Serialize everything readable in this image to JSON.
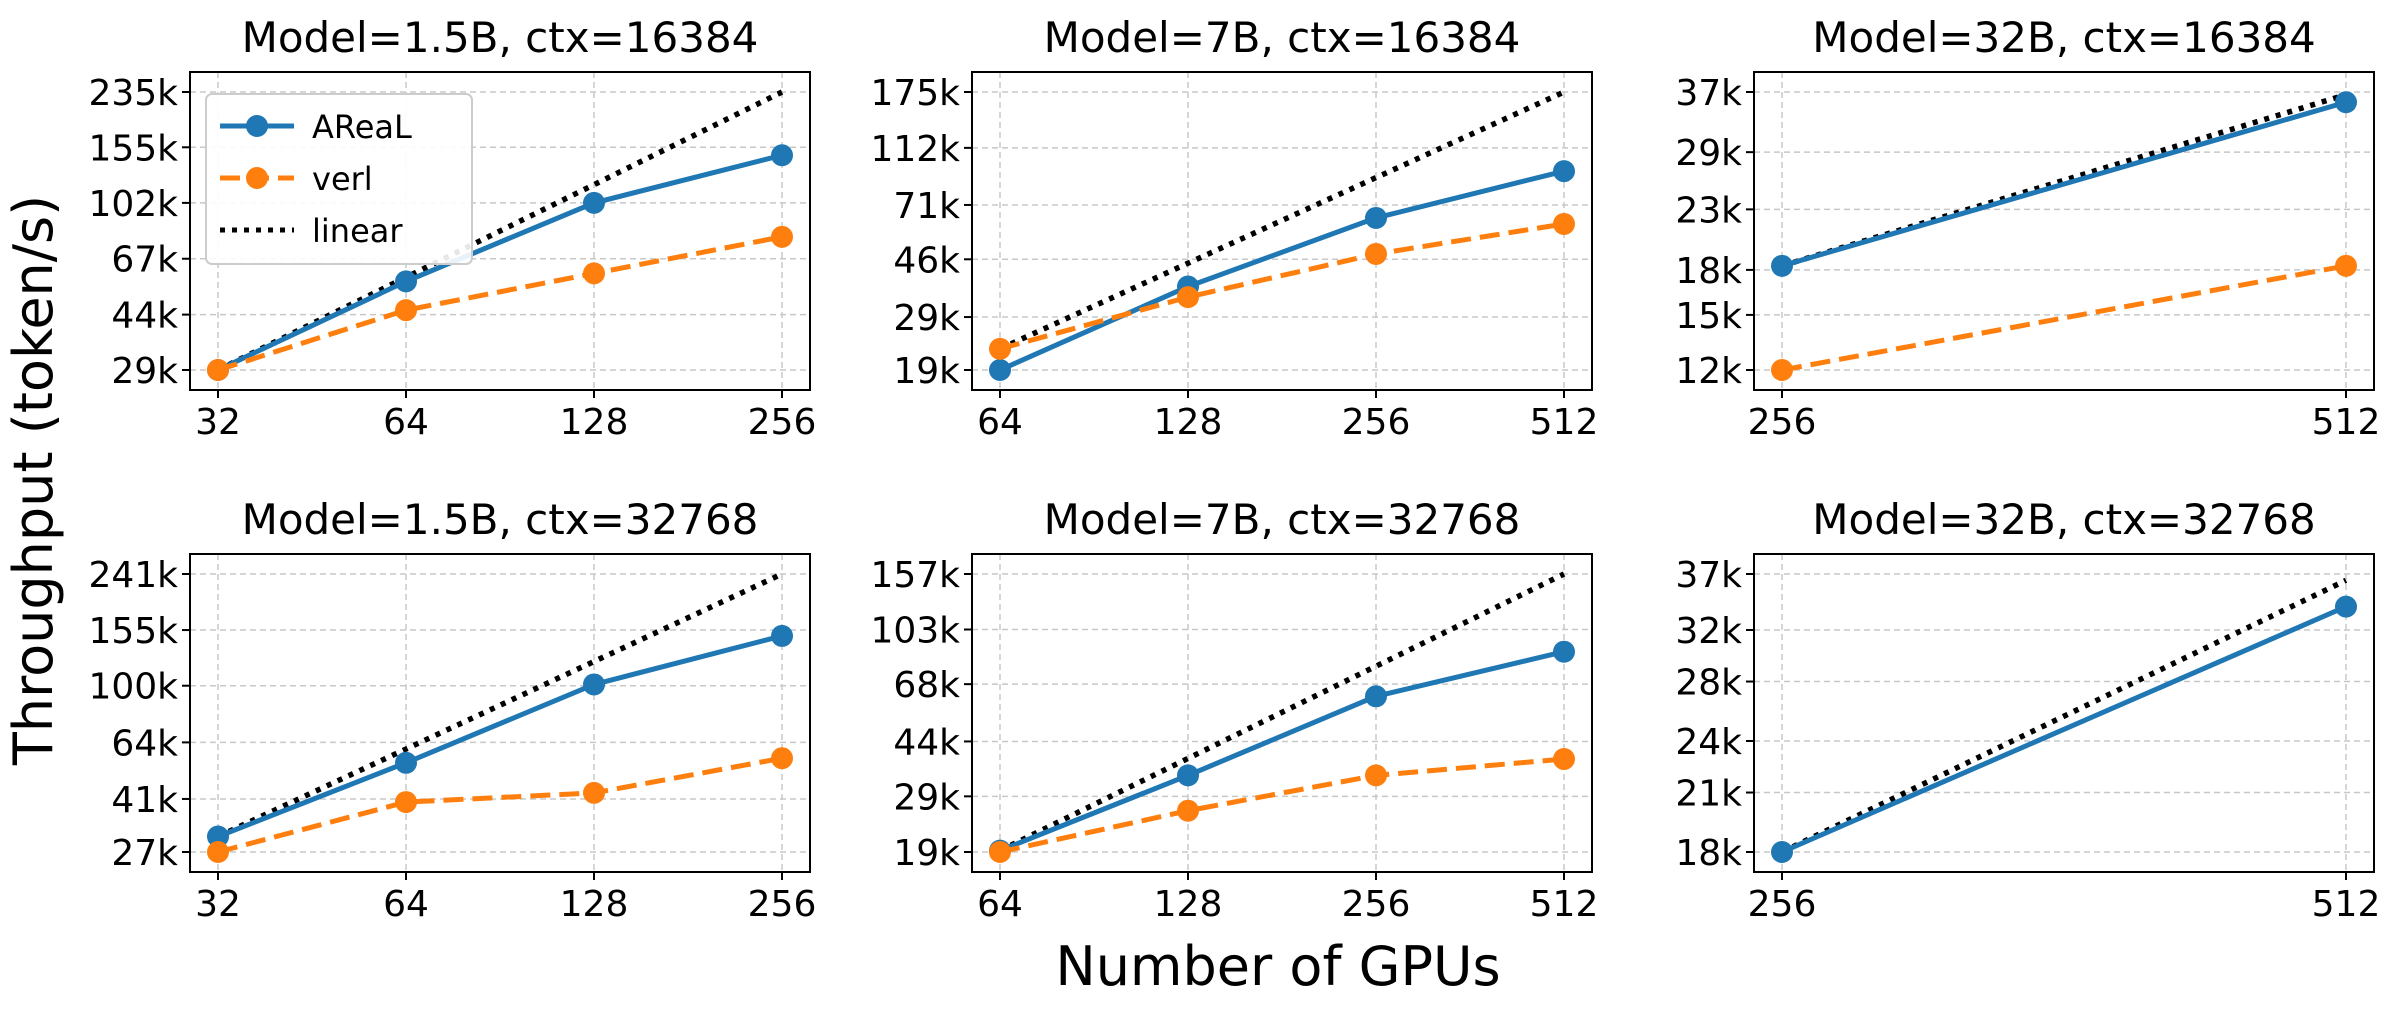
{
  "figure": {
    "ylabel": "Throughput (token/s)",
    "xlabel": "Number of GPUs"
  },
  "legend": {
    "location": "upper-left",
    "entries": [
      {
        "label": "AReaL",
        "color": "#1f77b4",
        "style": "solid",
        "marker": "circle"
      },
      {
        "label": "verl",
        "color": "#ff7f0e",
        "style": "dashed",
        "marker": "circle"
      },
      {
        "label": "linear",
        "color": "#000000",
        "style": "dotted",
        "marker": "none"
      }
    ]
  },
  "chart_data": [
    {
      "type": "line",
      "title": "Model=1.5B, ctx=16384",
      "xscale": "log2",
      "yscale": "log",
      "grid": true,
      "x": [
        32,
        64,
        128,
        256
      ],
      "xticks": [
        "32",
        "64",
        "128",
        "256"
      ],
      "yticks": [
        {
          "value": 29000,
          "label": "29k"
        },
        {
          "value": 44000,
          "label": "44k"
        },
        {
          "value": 67000,
          "label": "67k"
        },
        {
          "value": 102000,
          "label": "102k"
        },
        {
          "value": 155000,
          "label": "155k"
        },
        {
          "value": 235000,
          "label": "235k"
        }
      ],
      "series": [
        {
          "name": "AReaL",
          "color": "#1f77b4",
          "style": "solid",
          "marker": true,
          "x": [
            32,
            64,
            128,
            256
          ],
          "y": [
            29000,
            56500,
            102000,
            146000
          ]
        },
        {
          "name": "verl",
          "color": "#ff7f0e",
          "style": "dashed",
          "marker": true,
          "x": [
            32,
            64,
            128,
            256
          ],
          "y": [
            29000,
            45500,
            60000,
            79000
          ]
        },
        {
          "name": "linear",
          "color": "#000000",
          "style": "dotted",
          "marker": false,
          "x": [
            32,
            256
          ],
          "y": [
            29000,
            235000
          ]
        }
      ]
    },
    {
      "type": "line",
      "title": "Model=7B, ctx=16384",
      "xscale": "log2",
      "yscale": "log",
      "grid": true,
      "x": [
        64,
        128,
        256,
        512
      ],
      "xticks": [
        "64",
        "128",
        "256",
        "512"
      ],
      "yticks": [
        {
          "value": 19000,
          "label": "19k"
        },
        {
          "value": 29000,
          "label": "29k"
        },
        {
          "value": 46000,
          "label": "46k"
        },
        {
          "value": 71000,
          "label": "71k"
        },
        {
          "value": 112000,
          "label": "112k"
        },
        {
          "value": 175000,
          "label": "175k"
        }
      ],
      "series": [
        {
          "name": "AReaL",
          "color": "#1f77b4",
          "style": "solid",
          "marker": true,
          "x": [
            64,
            128,
            256,
            512
          ],
          "y": [
            19000,
            37000,
            64000,
            93000
          ]
        },
        {
          "name": "verl",
          "color": "#ff7f0e",
          "style": "dashed",
          "marker": true,
          "x": [
            64,
            128,
            256,
            512
          ],
          "y": [
            22500,
            34000,
            48000,
            61000
          ]
        },
        {
          "name": "linear",
          "color": "#000000",
          "style": "dotted",
          "marker": false,
          "x": [
            64,
            512
          ],
          "y": [
            22500,
            175000
          ]
        }
      ]
    },
    {
      "type": "line",
      "title": "Model=32B, ctx=16384",
      "xscale": "log2",
      "yscale": "log",
      "grid": true,
      "x": [
        256,
        512
      ],
      "xticks": [
        "256",
        "512"
      ],
      "yticks": [
        {
          "value": 12000,
          "label": "12k"
        },
        {
          "value": 15000,
          "label": "15k"
        },
        {
          "value": 18000,
          "label": "18k"
        },
        {
          "value": 23000,
          "label": "23k"
        },
        {
          "value": 29000,
          "label": "29k"
        },
        {
          "value": 37000,
          "label": "37k"
        }
      ],
      "series": [
        {
          "name": "AReaL",
          "color": "#1f77b4",
          "style": "solid",
          "marker": true,
          "x": [
            256,
            512
          ],
          "y": [
            18300,
            35500
          ]
        },
        {
          "name": "verl",
          "color": "#ff7f0e",
          "style": "dashed",
          "marker": true,
          "x": [
            256,
            512
          ],
          "y": [
            12000,
            18300
          ]
        },
        {
          "name": "linear",
          "color": "#000000",
          "style": "dotted",
          "marker": false,
          "x": [
            256,
            512
          ],
          "y": [
            18300,
            36600
          ]
        }
      ]
    },
    {
      "type": "line",
      "title": "Model=1.5B, ctx=32768",
      "xscale": "log2",
      "yscale": "log",
      "grid": true,
      "x": [
        32,
        64,
        128,
        256
      ],
      "xticks": [
        "32",
        "64",
        "128",
        "256"
      ],
      "yticks": [
        {
          "value": 27000,
          "label": "27k"
        },
        {
          "value": 41000,
          "label": "41k"
        },
        {
          "value": 64000,
          "label": "64k"
        },
        {
          "value": 100000,
          "label": "100k"
        },
        {
          "value": 155000,
          "label": "155k"
        },
        {
          "value": 241000,
          "label": "241k"
        }
      ],
      "series": [
        {
          "name": "AReaL",
          "color": "#1f77b4",
          "style": "solid",
          "marker": true,
          "x": [
            32,
            64,
            128,
            256
          ],
          "y": [
            30500,
            54500,
            101000,
            148000
          ]
        },
        {
          "name": "verl",
          "color": "#ff7f0e",
          "style": "dashed",
          "marker": true,
          "x": [
            32,
            64,
            128,
            256
          ],
          "y": [
            27000,
            40000,
            43000,
            56500
          ]
        },
        {
          "name": "linear",
          "color": "#000000",
          "style": "dotted",
          "marker": false,
          "x": [
            32,
            256
          ],
          "y": [
            30500,
            241000
          ]
        }
      ]
    },
    {
      "type": "line",
      "title": "Model=7B, ctx=32768",
      "xscale": "log2",
      "yscale": "log",
      "grid": true,
      "x": [
        64,
        128,
        256,
        512
      ],
      "xticks": [
        "64",
        "128",
        "256",
        "512"
      ],
      "yticks": [
        {
          "value": 19000,
          "label": "19k"
        },
        {
          "value": 29000,
          "label": "29k"
        },
        {
          "value": 44000,
          "label": "44k"
        },
        {
          "value": 68000,
          "label": "68k"
        },
        {
          "value": 103000,
          "label": "103k"
        },
        {
          "value": 157000,
          "label": "157k"
        }
      ],
      "series": [
        {
          "name": "AReaL",
          "color": "#1f77b4",
          "style": "solid",
          "marker": true,
          "x": [
            64,
            128,
            256,
            512
          ],
          "y": [
            19200,
            34000,
            62000,
            87000
          ]
        },
        {
          "name": "verl",
          "color": "#ff7f0e",
          "style": "dashed",
          "marker": true,
          "x": [
            64,
            128,
            256,
            512
          ],
          "y": [
            19000,
            26000,
            34000,
            38500
          ]
        },
        {
          "name": "linear",
          "color": "#000000",
          "style": "dotted",
          "marker": false,
          "x": [
            64,
            512
          ],
          "y": [
            19200,
            157000
          ]
        }
      ]
    },
    {
      "type": "line",
      "title": "Model=32B, ctx=32768",
      "xscale": "log2",
      "yscale": "log",
      "grid": true,
      "x": [
        256,
        512
      ],
      "xticks": [
        "256",
        "512"
      ],
      "yticks": [
        {
          "value": 18000,
          "label": "18k"
        },
        {
          "value": 21000,
          "label": "21k"
        },
        {
          "value": 24000,
          "label": "24k"
        },
        {
          "value": 28000,
          "label": "28k"
        },
        {
          "value": 32000,
          "label": "32k"
        },
        {
          "value": 37000,
          "label": "37k"
        }
      ],
      "series": [
        {
          "name": "AReaL",
          "color": "#1f77b4",
          "style": "solid",
          "marker": true,
          "x": [
            256,
            512
          ],
          "y": [
            18000,
            34000
          ]
        },
        {
          "name": "linear",
          "color": "#000000",
          "style": "dotted",
          "marker": false,
          "x": [
            256,
            512
          ],
          "y": [
            18000,
            36400
          ]
        }
      ]
    }
  ]
}
